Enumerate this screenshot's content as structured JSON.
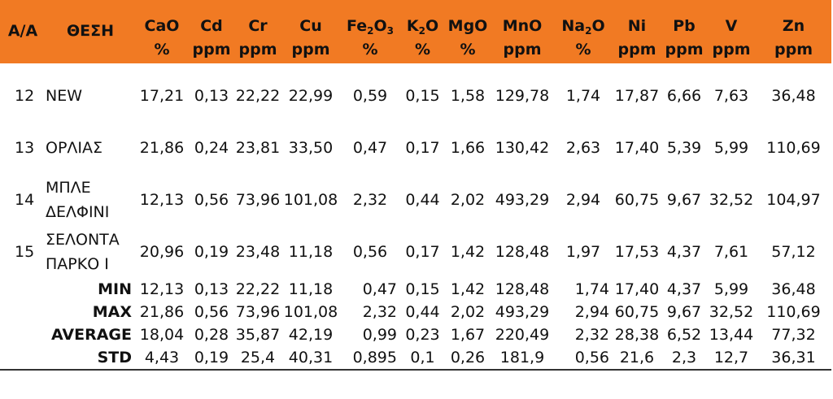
{
  "header": {
    "aa_label": "Α/Α",
    "thesi_label": "ΘΕΣΗ",
    "columns": [
      {
        "name": "CaO",
        "unit": "%"
      },
      {
        "name": "Cd",
        "unit": "ppm"
      },
      {
        "name": "Cr",
        "unit": "ppm"
      },
      {
        "name": "Cu",
        "unit": "ppm"
      },
      {
        "name_main": "Fe",
        "name_sub1": "2",
        "name_mid": "O",
        "name_sub2": "3",
        "unit": "%"
      },
      {
        "name_main": "K",
        "name_sub1": "2",
        "name_mid": "O",
        "unit": "%"
      },
      {
        "name": "MgO",
        "unit": "%"
      },
      {
        "name": "MnO",
        "unit": "ppm"
      },
      {
        "name_main": "Na",
        "name_sub1": "2",
        "name_mid": "O",
        "unit": "%"
      },
      {
        "name": "Ni",
        "unit": "ppm"
      },
      {
        "name": "Pb",
        "unit": "ppm"
      },
      {
        "name": "V",
        "unit": "ppm"
      },
      {
        "name": "Zn",
        "unit": "ppm"
      }
    ]
  },
  "rows": [
    {
      "aa": "12",
      "name_line1": "NEW",
      "name_line2": "",
      "values": [
        "17,21",
        "0,13",
        "22,22",
        "22,99",
        "0,59",
        "0,15",
        "1,58",
        "129,78",
        "1,74",
        "17,87",
        "6,66",
        "7,63",
        "36,48"
      ]
    },
    {
      "aa": "13",
      "name_line1": "ΟΡΛΙΑΣ",
      "name_line2": "",
      "values": [
        "21,86",
        "0,24",
        "23,81",
        "33,50",
        "0,47",
        "0,17",
        "1,66",
        "130,42",
        "2,63",
        "17,40",
        "5,39",
        "5,99",
        "110,69"
      ]
    },
    {
      "aa": "14",
      "name_line1": "ΜΠΛΕ",
      "name_line2": "ΔΕΛΦΙΝΙ",
      "values": [
        "12,13",
        "0,56",
        "73,96",
        "101,08",
        "2,32",
        "0,44",
        "2,02",
        "493,29",
        "2,94",
        "60,75",
        "9,67",
        "32,52",
        "104,97"
      ]
    },
    {
      "aa": "15",
      "name_line1": "ΣΕΛΟΝΤΑ",
      "name_line2": "ΠΑΡΚΟ Ι",
      "values": [
        "20,96",
        "0,19",
        "23,48",
        "11,18",
        "0,56",
        "0,17",
        "1,42",
        "128,48",
        "1,97",
        "17,53",
        "4,37",
        "7,61",
        "57,12"
      ]
    }
  ],
  "stats": [
    {
      "label": "MIN",
      "values": [
        "12,13",
        "0,13",
        "22,22",
        "11,18",
        "0,47",
        "0,15",
        "1,42",
        "128,48",
        "1,74",
        "17,40",
        "4,37",
        "5,99",
        "36,48"
      ]
    },
    {
      "label": "MAX",
      "values": [
        "21,86",
        "0,56",
        "73,96",
        "101,08",
        "2,32",
        "0,44",
        "2,02",
        "493,29",
        "2,94",
        "60,75",
        "9,67",
        "32,52",
        "110,69"
      ]
    },
    {
      "label": "AVERAGE",
      "values": [
        "18,04",
        "0,28",
        "35,87",
        "42,19",
        "0,99",
        "0,23",
        "1,67",
        "220,49",
        "2,32",
        "28,38",
        "6,52",
        "13,44",
        "77,32"
      ]
    },
    {
      "label": "STD",
      "values": [
        "4,43",
        "0,19",
        "25,4",
        "40,31",
        "0,895",
        "0,1",
        "0,26",
        "181,9",
        "0,56",
        "21,6",
        "2,3",
        "12,7",
        "36,31"
      ]
    }
  ],
  "colors": {
    "header_bg": "#f17a23",
    "text": "#111111"
  }
}
